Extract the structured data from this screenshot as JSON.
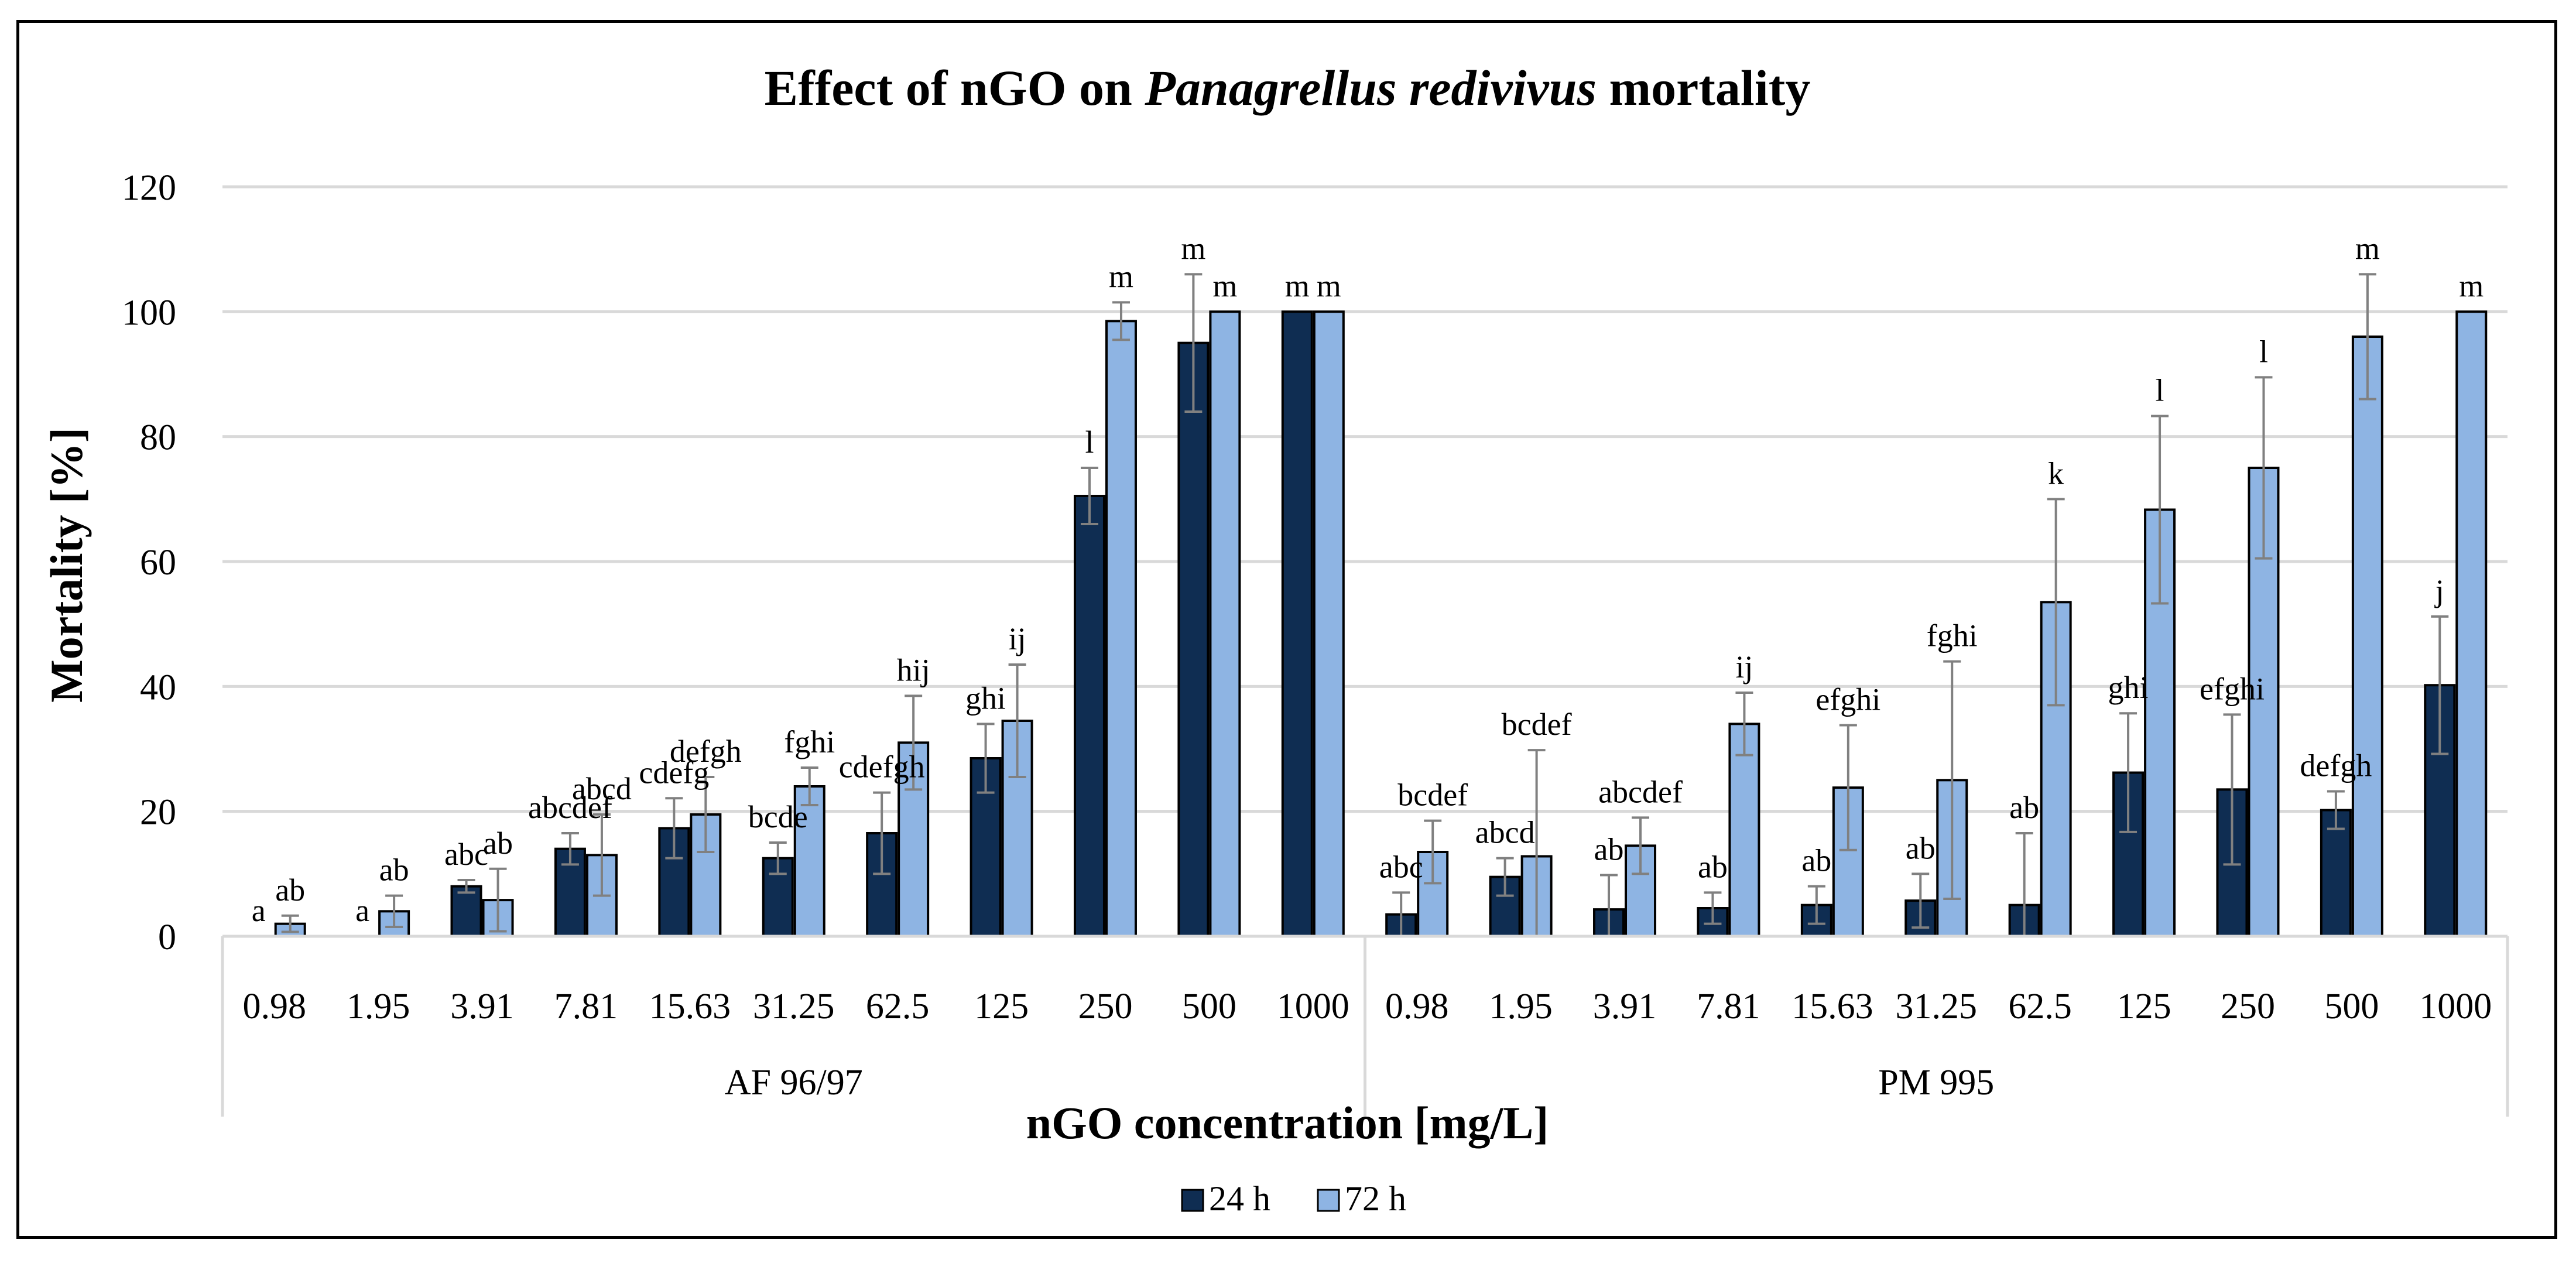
{
  "chart_data": {
    "type": "bar",
    "title_parts": [
      "Effect of nGO on ",
      "Panagrellus redivivus",
      " mortality"
    ],
    "xlabel": "nGO concentration [mg/L]",
    "ylabel": "Mortality [%]",
    "ylim": [
      0,
      120
    ],
    "yticks": [
      0,
      20,
      40,
      60,
      80,
      100,
      120
    ],
    "grid": true,
    "legend_position": "bottom",
    "groups": [
      {
        "name": "AF 96/97",
        "categories": [
          "0.98",
          "1.95",
          "3.91",
          "7.81",
          "15.63",
          "31.25",
          "62.5",
          "125",
          "250",
          "500",
          "1000"
        ],
        "series": [
          {
            "name": "24 h",
            "values": [
              0,
              0,
              8,
              14,
              17.3,
              12.5,
              16.5,
              28.5,
              70.5,
              95,
              100
            ],
            "errors": [
              0,
              0,
              1,
              2.5,
              4.8,
              2.5,
              6.5,
              5.5,
              4.5,
              11,
              0
            ],
            "letters": [
              "a",
              "a",
              "abc",
              "abcdef",
              "cdefg",
              "bcde",
              "cdefgh",
              "ghi",
              "l",
              "m",
              "m"
            ]
          },
          {
            "name": "72 h",
            "values": [
              2,
              4,
              5.8,
              13,
              19.5,
              24,
              31,
              34.5,
              98.5,
              100,
              100
            ],
            "errors": [
              1.3,
              2.5,
              5,
              6.5,
              6,
              3,
              7.5,
              9,
              3,
              0,
              0
            ],
            "letters": [
              "ab",
              "ab",
              "ab",
              "abcd",
              "defgh",
              "fghi",
              "hij",
              "ij",
              "m",
              "m",
              "m"
            ]
          }
        ]
      },
      {
        "name": "PM 995",
        "categories": [
          "0.98",
          "1.95",
          "3.91",
          "7.81",
          "15.63",
          "31.25",
          "62.5",
          "125",
          "250",
          "500",
          "1000"
        ],
        "series": [
          {
            "name": "24 h",
            "values": [
              3.5,
              9.5,
              4.3,
              4.5,
              5,
              5.7,
              5,
              26.2,
              23.5,
              20.2,
              40.2
            ],
            "errors": [
              3.5,
              3,
              5.5,
              2.5,
              3,
              4.3,
              11.5,
              9.5,
              12,
              3,
              11
            ],
            "letters": [
              "abc",
              "abcd",
              "ab",
              "ab",
              "ab",
              "ab",
              "ab",
              "ghi",
              "efghi",
              "defgh",
              "j"
            ]
          },
          {
            "name": "72 h",
            "values": [
              13.5,
              12.8,
              14.5,
              34,
              23.8,
              25,
              53.5,
              68.3,
              75,
              96,
              100
            ],
            "errors": [
              5,
              17,
              4.5,
              5,
              10,
              19,
              16.5,
              15,
              14.5,
              10,
              0
            ],
            "letters": [
              "bcdef",
              "bcdef",
              "abcdef",
              "ij",
              "efghi",
              "fghi",
              "k",
              "l",
              "l",
              "m",
              "m"
            ]
          }
        ]
      }
    ]
  },
  "colors": {
    "series_24h": "#0f2d52",
    "series_72h": "#8eb4e3",
    "grid": "#d9d9d9",
    "error": "#808080"
  }
}
